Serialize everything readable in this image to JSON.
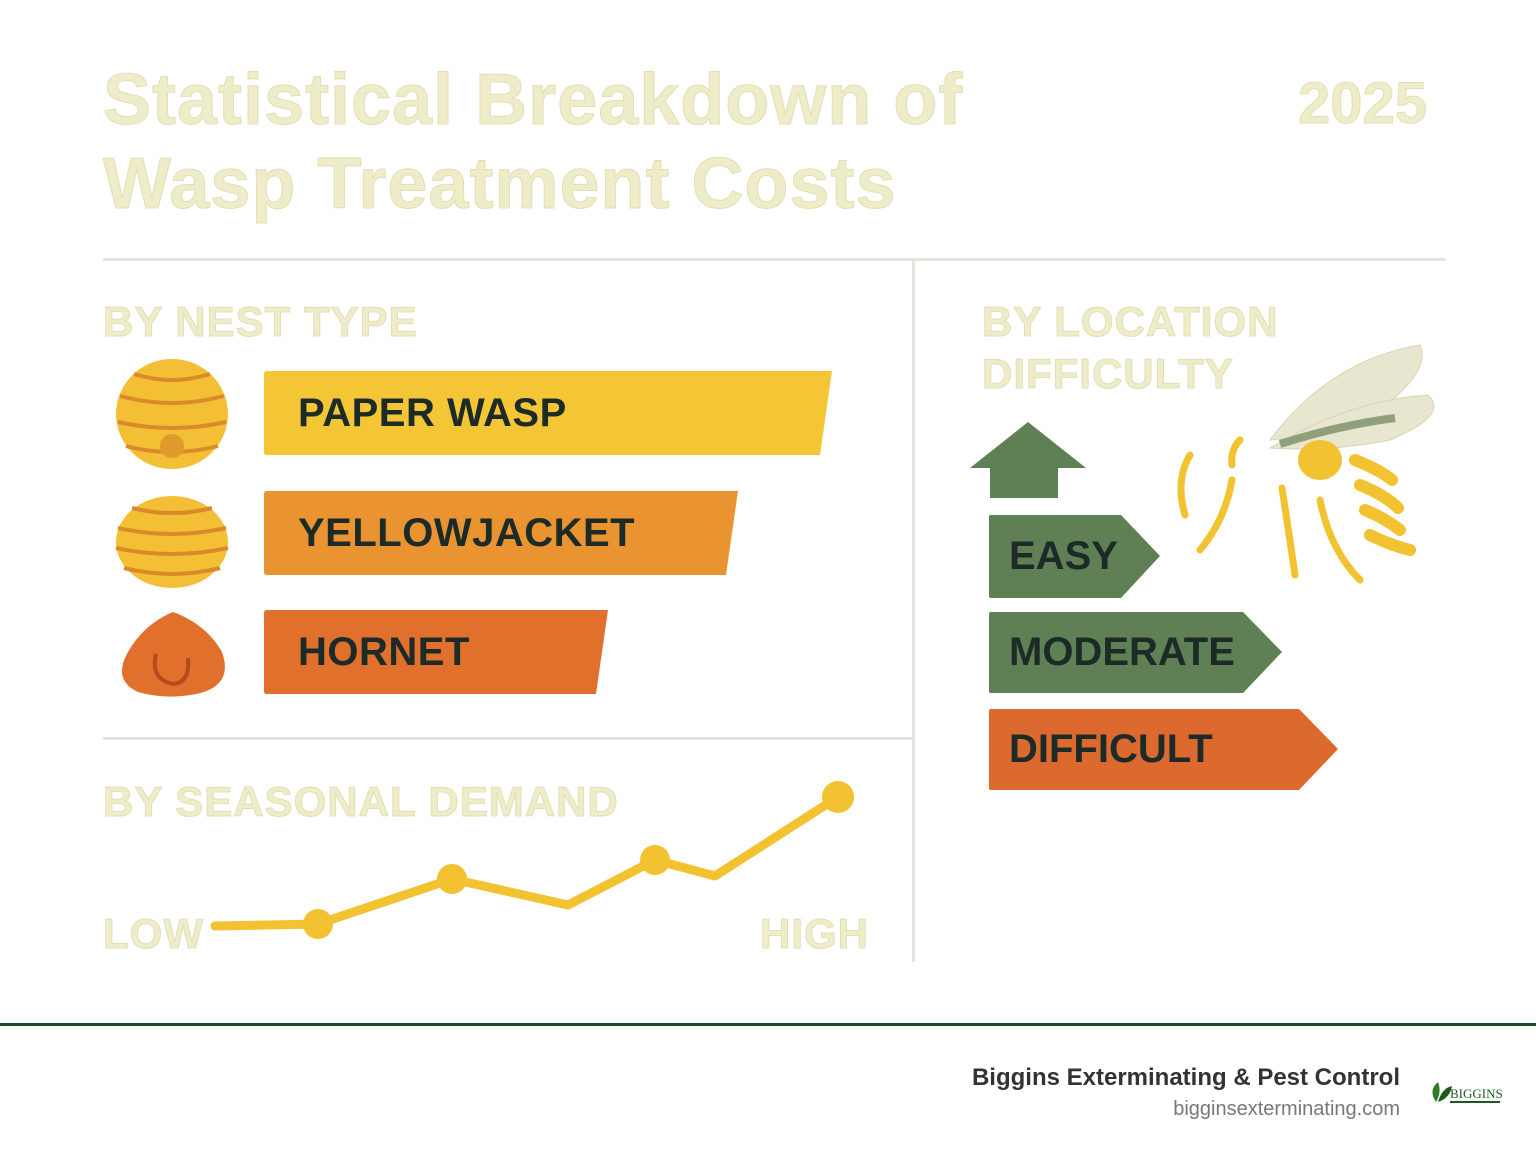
{
  "header": {
    "title_line1": "Statistical Breakdown of",
    "title_line2": "Wasp Treatment Costs",
    "year": "2025"
  },
  "nest_type": {
    "heading": "BY NEST TYPE",
    "items": [
      {
        "label": "PAPER WASP",
        "color": "#f4c535",
        "icon": "paper-wasp-nest-icon"
      },
      {
        "label": "YELLOWJACKET",
        "color": "#ea9431",
        "icon": "yellowjacket-nest-icon"
      },
      {
        "label": "HORNET",
        "color": "#e0702c",
        "icon": "hornet-nest-icon"
      }
    ]
  },
  "location": {
    "heading_line1": "BY LOCATION",
    "heading_line2": "DIFFICULTY",
    "items": [
      {
        "label": "EASY",
        "color": "#5f7f54"
      },
      {
        "label": "MODERATE",
        "color": "#5f7f54"
      },
      {
        "label": "DIFFICULT",
        "color": "#dc6a2e"
      }
    ],
    "icons": [
      "up-arrow-icon",
      "wasp-icon"
    ]
  },
  "seasonal": {
    "heading": "BY SEASONAL DEMAND",
    "low_label": "LOW",
    "high_label": "HIGH",
    "line_color": "#f2c230"
  },
  "footer": {
    "company": "Biggins Exterminating & Pest Control",
    "url": "bigginsexterminating.com",
    "logo_text": "BIGGINS"
  }
}
